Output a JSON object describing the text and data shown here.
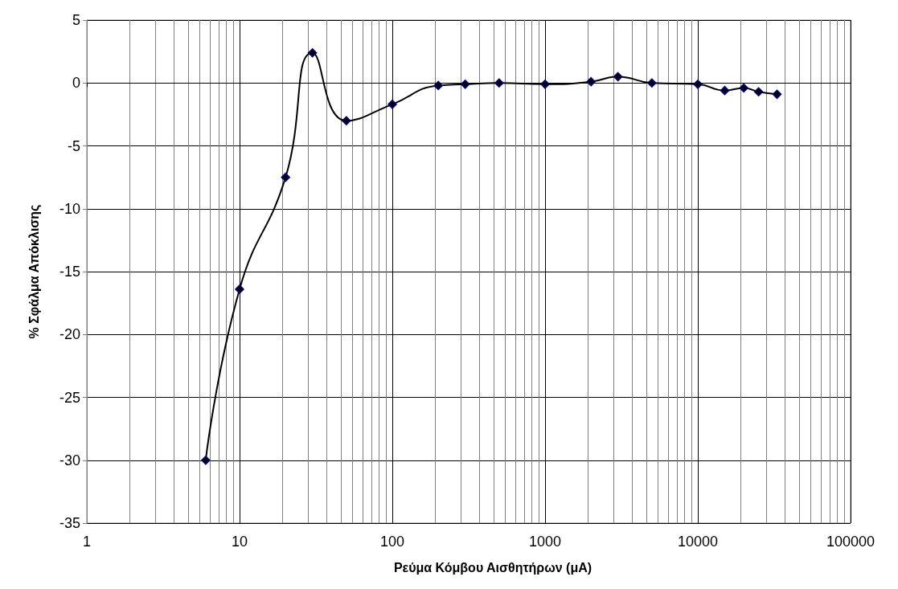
{
  "chart_data": {
    "type": "line",
    "xlabel": "Ρεύμα Κόμβου Αισθητήρων (μA)",
    "ylabel": "% Σφάλμα Απόκλισης",
    "log": "x",
    "grid": true,
    "marker": "diamond",
    "line_style": "solid",
    "xlim": [
      1,
      100000
    ],
    "xticks": [
      1,
      10,
      100,
      1000,
      10000,
      100000
    ],
    "ylim": [
      -35,
      5
    ],
    "yticks": [
      -35,
      -30,
      -25,
      -20,
      -15,
      -10,
      -5,
      0,
      5
    ],
    "series": [
      {
        "color": "#000000",
        "x": [
          6,
          10,
          20,
          30,
          50,
          100,
          200,
          300,
          500,
          1000,
          2000,
          3000,
          5000,
          10000,
          15000,
          20000,
          25000,
          33000
        ],
        "values": [
          -30,
          -16.4,
          -7.5,
          2.4,
          -3.0,
          -1.7,
          -0.2,
          -0.1,
          0,
          -0.1,
          0.1,
          0.5,
          0,
          -0.1,
          -0.6,
          -0.4,
          -0.7,
          -0.9
        ]
      }
    ]
  }
}
